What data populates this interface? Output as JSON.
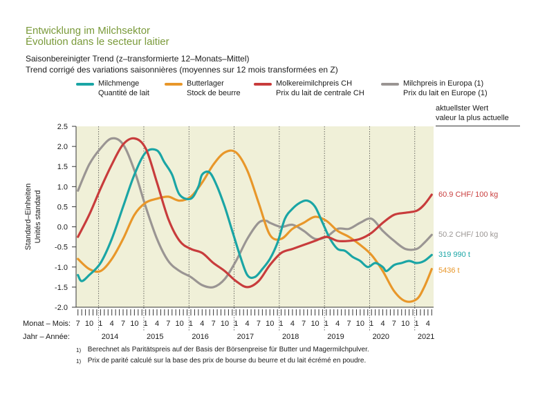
{
  "header": {
    "title_de": "Entwicklung im Milchsektor",
    "title_fr": "Évolution dans le secteur laitier",
    "subtitle_de": "Saisonbereinigter Trend (z–transformierte 12–Monats–Mittel)",
    "subtitle_fr": "Trend corrigé des variations saisonnières (moyennes sur 12 mois transformées en Z)"
  },
  "legend": [
    {
      "de": "Milchmenge",
      "fr": "Quantité de lait",
      "color": "#1aa5a5"
    },
    {
      "de": "Butterlager",
      "fr": "Stock de beurre",
      "color": "#e8972a"
    },
    {
      "de": "Molkereimilchpreis CH",
      "fr": "Prix du lait de centrale CH",
      "color": "#c83c3c"
    },
    {
      "de": "Milchpreis in Europa (1)",
      "fr": "Prix du lait en Europe (1)",
      "color": "#9a9593"
    }
  ],
  "current": {
    "header_de": "aktuellster Wert",
    "header_fr": "valeur la plus actuelle",
    "values": [
      {
        "label": "60.9 CHF/ 100 kg",
        "color": "#c83c3c"
      },
      {
        "label": "50.2 CHF/ 100 kg",
        "color": "#9a9593"
      },
      {
        "label": "319 990 t",
        "color": "#1aa5a5"
      },
      {
        "label": "5436 t",
        "color": "#e8972a"
      }
    ]
  },
  "axes": {
    "ylabel_de": "Standard–Einheiten",
    "ylabel_fr": "Unités standard",
    "month_row_label": "Monat – Mois:",
    "year_row_label": "Jahr – Année:"
  },
  "footnotes": {
    "mark": "1)",
    "de": "Berechnet als Paritätspreis auf der Basis der Börsenpreise für Butter und Magermilchpulver.",
    "fr": "Prix de parité calculé sur la base des prix de bourse du beurre et du lait écrémé en poudre."
  },
  "chart_data": {
    "type": "line",
    "plot_background": "#f0f0d8",
    "ylim": [
      -2.0,
      2.5
    ],
    "yticks": [
      "2.5",
      "2.0",
      "1.5",
      "1.0",
      "0.5",
      "0.0",
      "-0.5",
      "-1.0",
      "-1.5",
      "-2.0"
    ],
    "x_start": "2013-07",
    "x_end": "2021-05",
    "month_labels": [
      "7",
      "10",
      "1",
      "4",
      "7",
      "10",
      "1",
      "4",
      "7",
      "10",
      "1",
      "4",
      "7",
      "10",
      "1",
      "4",
      "7",
      "10",
      "1",
      "4",
      "7",
      "10",
      "1",
      "4",
      "7",
      "10",
      "1",
      "4",
      "7",
      "10",
      "1",
      "4"
    ],
    "year_labels": [
      "2014",
      "2015",
      "2016",
      "2017",
      "2018",
      "2019",
      "2020",
      "2021"
    ],
    "grid_x": "dotted at January",
    "series": [
      {
        "name": "Milchmenge",
        "color": "#1aa5a5",
        "points": [
          [
            "2013-07",
            -1.2
          ],
          [
            "2013-08",
            -1.35
          ],
          [
            "2013-10",
            -1.2
          ],
          [
            "2014-01",
            -0.9
          ],
          [
            "2014-04",
            -0.3
          ],
          [
            "2014-07",
            0.5
          ],
          [
            "2014-10",
            1.3
          ],
          [
            "2015-01",
            1.85
          ],
          [
            "2015-04",
            1.9
          ],
          [
            "2015-06",
            1.6
          ],
          [
            "2015-08",
            1.3
          ],
          [
            "2015-10",
            0.8
          ],
          [
            "2016-01",
            0.7
          ],
          [
            "2016-03",
            1.0
          ],
          [
            "2016-04",
            1.3
          ],
          [
            "2016-06",
            1.35
          ],
          [
            "2016-08",
            1.0
          ],
          [
            "2016-10",
            0.5
          ],
          [
            "2016-12",
            -0.1
          ],
          [
            "2017-02",
            -0.7
          ],
          [
            "2017-04",
            -1.2
          ],
          [
            "2017-06",
            -1.25
          ],
          [
            "2017-08",
            -1.05
          ],
          [
            "2017-10",
            -0.8
          ],
          [
            "2017-12",
            -0.4
          ],
          [
            "2018-02",
            0.2
          ],
          [
            "2018-04",
            0.45
          ],
          [
            "2018-06",
            0.6
          ],
          [
            "2018-08",
            0.65
          ],
          [
            "2018-10",
            0.5
          ],
          [
            "2018-12",
            0.1
          ],
          [
            "2019-02",
            -0.3
          ],
          [
            "2019-04",
            -0.55
          ],
          [
            "2019-06",
            -0.6
          ],
          [
            "2019-08",
            -0.75
          ],
          [
            "2019-10",
            -0.85
          ],
          [
            "2019-12",
            -1.0
          ],
          [
            "2020-02",
            -0.9
          ],
          [
            "2020-04",
            -1.0
          ],
          [
            "2020-05",
            -1.1
          ],
          [
            "2020-07",
            -0.95
          ],
          [
            "2020-09",
            -0.9
          ],
          [
            "2020-11",
            -0.85
          ],
          [
            "2021-01",
            -0.9
          ],
          [
            "2021-03",
            -0.85
          ],
          [
            "2021-05",
            -0.7
          ]
        ]
      },
      {
        "name": "Butterlager",
        "color": "#e8972a",
        "points": [
          [
            "2013-07",
            -0.8
          ],
          [
            "2013-10",
            -1.05
          ],
          [
            "2014-01",
            -1.1
          ],
          [
            "2014-04",
            -0.8
          ],
          [
            "2014-07",
            -0.3
          ],
          [
            "2014-10",
            0.3
          ],
          [
            "2015-01",
            0.6
          ],
          [
            "2015-04",
            0.7
          ],
          [
            "2015-07",
            0.75
          ],
          [
            "2015-10",
            0.65
          ],
          [
            "2016-01",
            0.75
          ],
          [
            "2016-04",
            1.1
          ],
          [
            "2016-07",
            1.55
          ],
          [
            "2016-10",
            1.85
          ],
          [
            "2017-01",
            1.85
          ],
          [
            "2017-04",
            1.4
          ],
          [
            "2017-07",
            0.6
          ],
          [
            "2017-10",
            -0.2
          ],
          [
            "2018-01",
            -0.3
          ],
          [
            "2018-04",
            -0.05
          ],
          [
            "2018-07",
            0.1
          ],
          [
            "2018-10",
            0.25
          ],
          [
            "2019-01",
            0.15
          ],
          [
            "2019-04",
            -0.1
          ],
          [
            "2019-07",
            -0.25
          ],
          [
            "2019-10",
            -0.45
          ],
          [
            "2020-01",
            -0.7
          ],
          [
            "2020-04",
            -1.1
          ],
          [
            "2020-07",
            -1.6
          ],
          [
            "2020-10",
            -1.85
          ],
          [
            "2021-01",
            -1.8
          ],
          [
            "2021-03",
            -1.5
          ],
          [
            "2021-05",
            -1.05
          ]
        ]
      },
      {
        "name": "Molkereimilchpreis CH",
        "color": "#c83c3c",
        "points": [
          [
            "2013-07",
            -0.25
          ],
          [
            "2013-10",
            0.3
          ],
          [
            "2014-01",
            0.95
          ],
          [
            "2014-04",
            1.55
          ],
          [
            "2014-07",
            2.05
          ],
          [
            "2014-10",
            2.2
          ],
          [
            "2015-01",
            1.95
          ],
          [
            "2015-04",
            1.1
          ],
          [
            "2015-07",
            0.2
          ],
          [
            "2015-10",
            -0.35
          ],
          [
            "2016-01",
            -0.55
          ],
          [
            "2016-04",
            -0.65
          ],
          [
            "2016-07",
            -0.9
          ],
          [
            "2016-10",
            -1.1
          ],
          [
            "2017-01",
            -1.35
          ],
          [
            "2017-04",
            -1.5
          ],
          [
            "2017-07",
            -1.35
          ],
          [
            "2017-10",
            -0.95
          ],
          [
            "2018-01",
            -0.65
          ],
          [
            "2018-04",
            -0.55
          ],
          [
            "2018-07",
            -0.45
          ],
          [
            "2018-10",
            -0.35
          ],
          [
            "2019-01",
            -0.25
          ],
          [
            "2019-04",
            -0.35
          ],
          [
            "2019-07",
            -0.35
          ],
          [
            "2019-10",
            -0.3
          ],
          [
            "2020-01",
            -0.15
          ],
          [
            "2020-04",
            0.1
          ],
          [
            "2020-07",
            0.3
          ],
          [
            "2020-10",
            0.35
          ],
          [
            "2021-01",
            0.4
          ],
          [
            "2021-03",
            0.55
          ],
          [
            "2021-05",
            0.8
          ]
        ]
      },
      {
        "name": "Milchpreis in Europa (1)",
        "color": "#9a9593",
        "points": [
          [
            "2013-07",
            0.9
          ],
          [
            "2013-10",
            1.55
          ],
          [
            "2014-01",
            1.95
          ],
          [
            "2014-04",
            2.2
          ],
          [
            "2014-07",
            2.05
          ],
          [
            "2014-10",
            1.4
          ],
          [
            "2015-01",
            0.5
          ],
          [
            "2015-04",
            -0.3
          ],
          [
            "2015-07",
            -0.85
          ],
          [
            "2015-10",
            -1.1
          ],
          [
            "2016-01",
            -1.25
          ],
          [
            "2016-04",
            -1.45
          ],
          [
            "2016-07",
            -1.5
          ],
          [
            "2016-10",
            -1.3
          ],
          [
            "2017-01",
            -0.85
          ],
          [
            "2017-04",
            -0.3
          ],
          [
            "2017-07",
            0.1
          ],
          [
            "2017-09",
            0.15
          ],
          [
            "2017-10",
            0.1
          ],
          [
            "2018-01",
            0.0
          ],
          [
            "2018-04",
            0.05
          ],
          [
            "2018-07",
            -0.1
          ],
          [
            "2018-10",
            -0.3
          ],
          [
            "2019-01",
            -0.25
          ],
          [
            "2019-04",
            -0.05
          ],
          [
            "2019-07",
            -0.05
          ],
          [
            "2019-10",
            0.1
          ],
          [
            "2020-01",
            0.2
          ],
          [
            "2020-04",
            -0.1
          ],
          [
            "2020-07",
            -0.35
          ],
          [
            "2020-10",
            -0.55
          ],
          [
            "2021-01",
            -0.55
          ],
          [
            "2021-03",
            -0.4
          ],
          [
            "2021-05",
            -0.2
          ]
        ]
      }
    ]
  }
}
